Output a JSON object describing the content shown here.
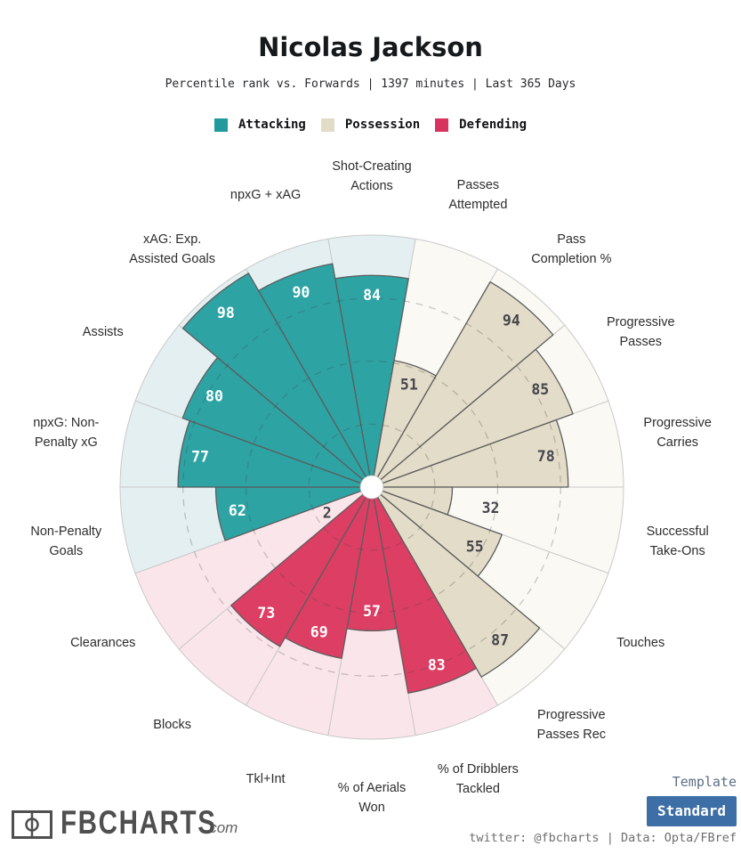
{
  "header": {
    "title": "Nicolas Jackson",
    "subtitle": "Percentile rank vs. Forwards | 1397 minutes | Last 365 Days"
  },
  "legend": [
    {
      "label": "Attacking",
      "color": "#219a9d"
    },
    {
      "label": "Possession",
      "color": "#e2dbc5"
    },
    {
      "label": "Defending",
      "color": "#d8335e"
    }
  ],
  "chart_data": {
    "type": "pie",
    "subtype": "percentile-pizza",
    "title": "Nicolas Jackson",
    "subtitle": "Percentile rank vs. Forwards | 1397 minutes | Last 365 Days",
    "scale": [
      0,
      100
    ],
    "gridlines": [
      25,
      50,
      75
    ],
    "grid_style": "dashed",
    "groups": {
      "attacking": {
        "fill": "#2da3a4",
        "bg": "#e3eff0"
      },
      "possession": {
        "fill": "#e3dcc8",
        "bg": "#faf9f4"
      },
      "defending": {
        "fill": "#dd3e64",
        "bg": "#fae5ea"
      }
    },
    "slices": [
      {
        "label": "Shot-Creating\nActions",
        "value": 84,
        "group": "attacking"
      },
      {
        "label": "Passes\nAttempted",
        "value": 51,
        "group": "possession"
      },
      {
        "label": "Pass\nCompletion %",
        "value": 94,
        "group": "possession"
      },
      {
        "label": "Progressive\nPasses",
        "value": 85,
        "group": "possession"
      },
      {
        "label": "Progressive\nCarries",
        "value": 78,
        "group": "possession"
      },
      {
        "label": "Successful\nTake-Ons",
        "value": 32,
        "group": "possession"
      },
      {
        "label": "Touches",
        "value": 55,
        "group": "possession"
      },
      {
        "label": "Progressive\nPasses Rec",
        "value": 87,
        "group": "possession"
      },
      {
        "label": "% of Dribblers\nTackled",
        "value": 83,
        "group": "defending"
      },
      {
        "label": "% of Aerials\nWon",
        "value": 57,
        "group": "defending"
      },
      {
        "label": "Tkl+Int",
        "value": 69,
        "group": "defending"
      },
      {
        "label": "Blocks",
        "value": 73,
        "group": "defending"
      },
      {
        "label": "Clearances",
        "value": 2,
        "group": "defending"
      },
      {
        "label": "Non-Penalty\nGoals",
        "value": 62,
        "group": "attacking"
      },
      {
        "label": "npxG: Non-\nPenalty xG",
        "value": 77,
        "group": "attacking"
      },
      {
        "label": "Assists",
        "value": 80,
        "group": "attacking"
      },
      {
        "label": "xAG: Exp.\nAssisted Goals",
        "value": 98,
        "group": "attacking"
      },
      {
        "label": "npxG + xAG",
        "value": 90,
        "group": "attacking"
      }
    ]
  },
  "footer": {
    "logo_text": "FBCHARTS",
    "logo_suffix": ".com",
    "template_label": "Template",
    "template_value": "Standard",
    "button_color": "#3d6ea5",
    "credit": "twitter: @fbcharts | Data: Opta/FBref"
  }
}
